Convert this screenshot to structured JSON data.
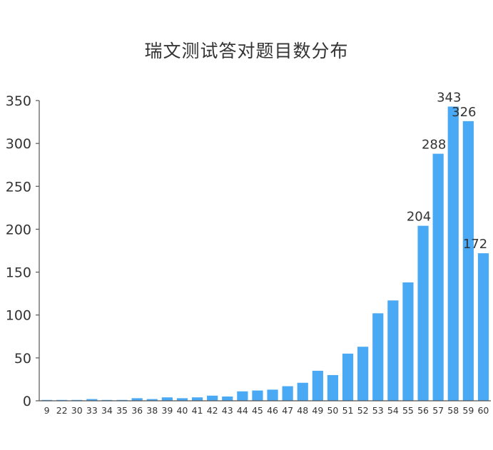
{
  "chart_data": {
    "type": "bar",
    "title": "瑞文测试答对题目数分布",
    "xlabel": "",
    "ylabel": "",
    "ylim": [
      0,
      350
    ],
    "yticks": [
      0,
      50,
      100,
      150,
      200,
      250,
      300,
      350
    ],
    "grid": false,
    "bar_color": "#4aa9f4",
    "categories": [
      "9",
      "22",
      "30",
      "33",
      "34",
      "35",
      "36",
      "38",
      "39",
      "40",
      "41",
      "42",
      "43",
      "44",
      "45",
      "46",
      "47",
      "48",
      "49",
      "50",
      "51",
      "52",
      "53",
      "54",
      "55",
      "56",
      "57",
      "58",
      "59",
      "60"
    ],
    "values": [
      1,
      1,
      1,
      2,
      1,
      1,
      3,
      2,
      4,
      3,
      4,
      6,
      5,
      11,
      12,
      13,
      17,
      21,
      35,
      30,
      55,
      63,
      102,
      117,
      138,
      204,
      288,
      343,
      326,
      172
    ],
    "data_labels": [
      {
        "category": "56",
        "text": "204"
      },
      {
        "category": "57",
        "text": "288"
      },
      {
        "category": "58",
        "text": "343"
      },
      {
        "category": "59",
        "text": "326"
      },
      {
        "category": "60",
        "text": "172"
      }
    ]
  }
}
